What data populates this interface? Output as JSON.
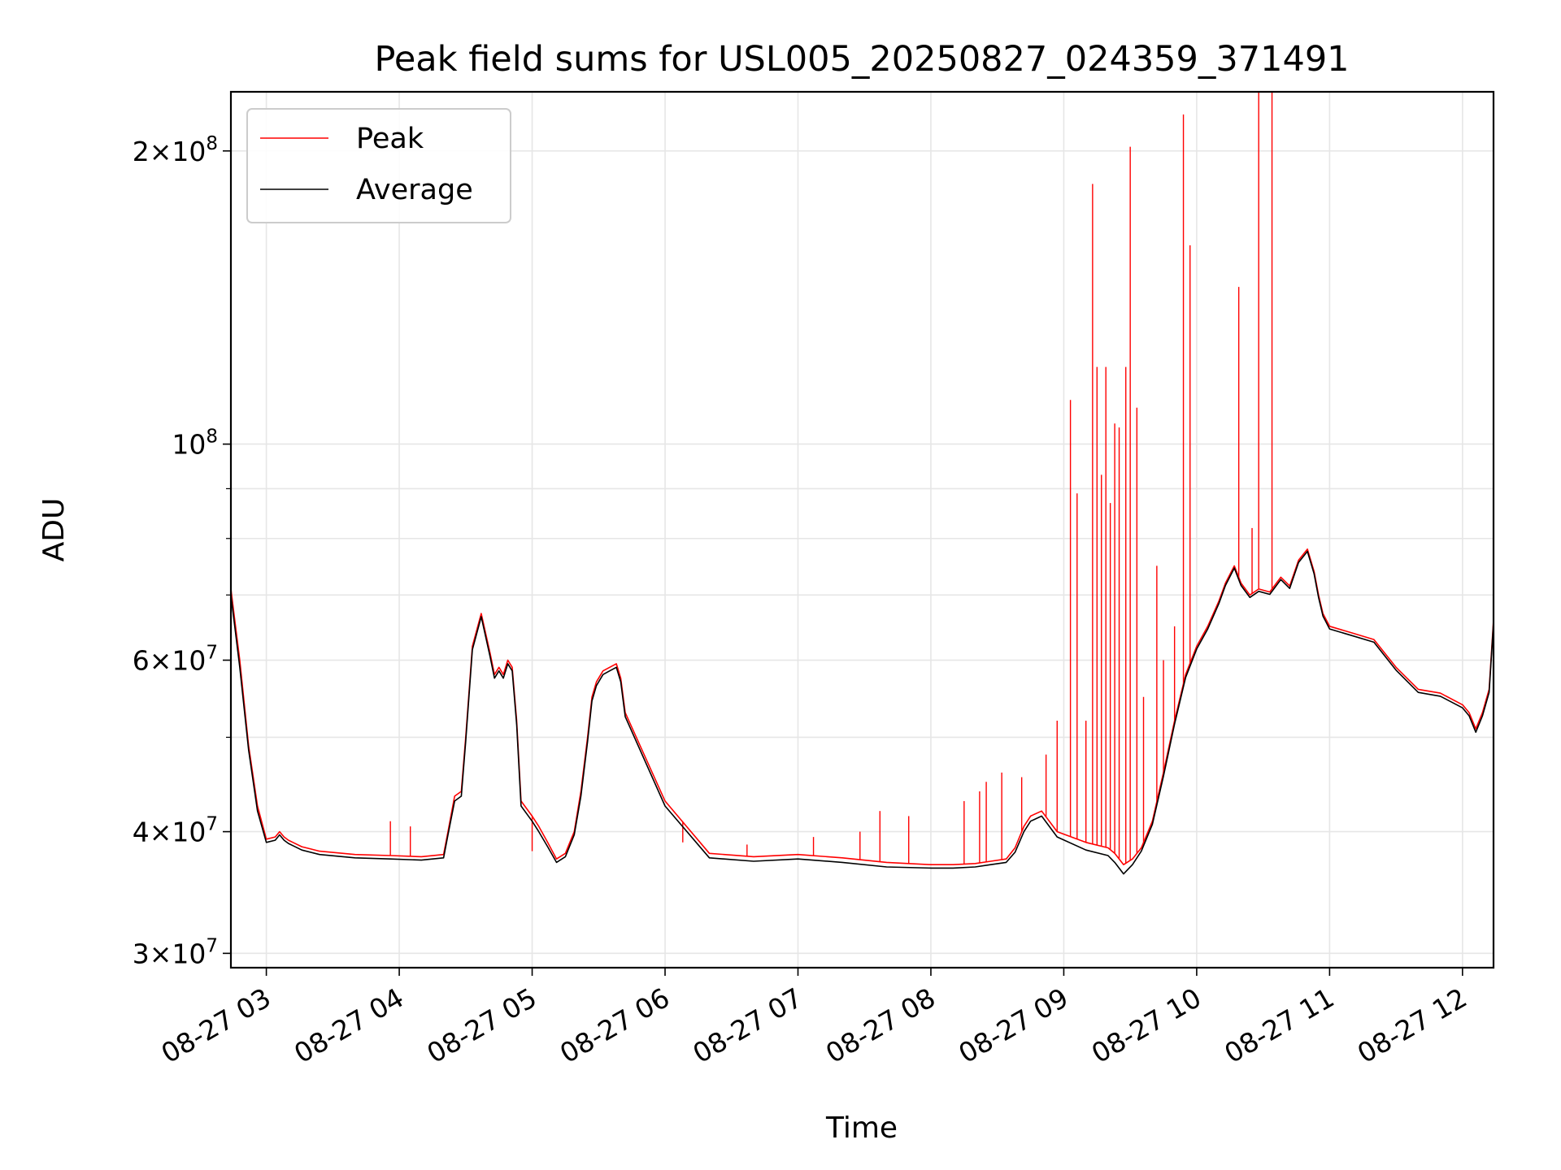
{
  "chart_data": {
    "type": "line",
    "title": "Peak field sums for USL005_20250827_024359_371491",
    "xlabel": "Time",
    "ylabel": "ADU",
    "yscale": "log",
    "xlim": [
      "2025-08-27 02:44",
      "2025-08-27 12:14"
    ],
    "ylim": [
      29000000,
      230000000
    ],
    "grid": true,
    "legend_position": "top-left",
    "x_ticks": [
      "08-27 03",
      "08-27 04",
      "08-27 05",
      "08-27 06",
      "08-27 07",
      "08-27 08",
      "08-27 09",
      "08-27 10",
      "08-27 11",
      "08-27 12"
    ],
    "y_ticks_major": [
      {
        "value": 30000000,
        "mantissa": "3",
        "exp": "7"
      },
      {
        "value": 40000000,
        "mantissa": "4",
        "exp": "7"
      },
      {
        "value": 60000000,
        "mantissa": "6",
        "exp": "7"
      },
      {
        "value": 100000000,
        "mantissa": "",
        "exp": "8"
      },
      {
        "value": 200000000,
        "mantissa": "2",
        "exp": "8"
      }
    ],
    "y_gridlines": [
      30000000,
      40000000,
      50000000,
      60000000,
      70000000,
      80000000,
      90000000,
      100000000,
      200000000
    ],
    "series": [
      {
        "name": "Peak",
        "color": "#ff0000",
        "x": [
          "02:44",
          "02:48",
          "02:52",
          "02:56",
          "03:00",
          "03:04",
          "03:06",
          "03:08",
          "03:10",
          "03:12",
          "03:16",
          "03:24",
          "03:40",
          "03:56",
          "04:10",
          "04:20",
          "04:22",
          "04:25",
          "04:28",
          "04:30",
          "04:33",
          "04:37",
          "04:41",
          "04:43",
          "04:45",
          "04:47",
          "04:49",
          "04:51",
          "04:53",
          "04:55",
          "05:00",
          "05:03",
          "05:07",
          "05:11",
          "05:15",
          "05:19",
          "05:22",
          "05:25",
          "05:27",
          "05:29",
          "05:32",
          "05:35",
          "05:38",
          "05:40",
          "05:42",
          "06:00",
          "06:20",
          "06:40",
          "07:00",
          "07:20",
          "07:40",
          "08:00",
          "08:10",
          "08:20",
          "08:27",
          "08:34",
          "08:38",
          "08:42",
          "08:45",
          "08:50",
          "08:57",
          "09:10",
          "09:20",
          "09:23",
          "09:27",
          "09:31",
          "09:35",
          "09:40",
          "09:45",
          "09:50",
          "09:55",
          "10:00",
          "10:05",
          "10:10",
          "10:13",
          "10:17",
          "10:20",
          "10:24",
          "10:28",
          "10:33",
          "10:38",
          "10:42",
          "10:46",
          "10:50",
          "10:53",
          "10:55",
          "10:57",
          "11:00",
          "11:10",
          "11:20",
          "11:30",
          "11:40",
          "11:50",
          "12:00",
          "12:03",
          "12:06",
          "12:09",
          "12:12",
          "12:14"
        ],
        "y": [
          71000000,
          60000000,
          49000000,
          42500000,
          39300000,
          39500000,
          40000000,
          39500000,
          39200000,
          39000000,
          38600000,
          38200000,
          37900000,
          37800000,
          37700000,
          37900000,
          40000000,
          43500000,
          44000000,
          50000000,
          62000000,
          67000000,
          61000000,
          58000000,
          59000000,
          58000000,
          60000000,
          59000000,
          52000000,
          43000000,
          41500000,
          40500000,
          39000000,
          37500000,
          38000000,
          40000000,
          44000000,
          50000000,
          55000000,
          57000000,
          58500000,
          59000000,
          59500000,
          57500000,
          53000000,
          43000000,
          38000000,
          37700000,
          37900000,
          37600000,
          37200000,
          37000000,
          37000000,
          37100000,
          37300000,
          37500000,
          38500000,
          40500000,
          41500000,
          42000000,
          40000000,
          39000000,
          38500000,
          38000000,
          37000000,
          37500000,
          38500000,
          41000000,
          46000000,
          52000000,
          58000000,
          62000000,
          65000000,
          69000000,
          72000000,
          75000000,
          72000000,
          70000000,
          71000000,
          70500000,
          73000000,
          71500000,
          76000000,
          78000000,
          74000000,
          70000000,
          67000000,
          65000000,
          64000000,
          63000000,
          59000000,
          56000000,
          55500000,
          54000000,
          53000000,
          51000000,
          53000000,
          56000000,
          66000000
        ]
      },
      {
        "name": "Average",
        "color": "#000000",
        "x": [
          "02:44",
          "02:48",
          "02:52",
          "02:56",
          "03:00",
          "03:04",
          "03:06",
          "03:08",
          "03:10",
          "03:12",
          "03:16",
          "03:24",
          "03:40",
          "03:56",
          "04:10",
          "04:20",
          "04:22",
          "04:25",
          "04:28",
          "04:30",
          "04:33",
          "04:37",
          "04:41",
          "04:43",
          "04:45",
          "04:47",
          "04:49",
          "04:51",
          "04:53",
          "04:55",
          "05:00",
          "05:03",
          "05:07",
          "05:11",
          "05:15",
          "05:19",
          "05:22",
          "05:25",
          "05:27",
          "05:29",
          "05:32",
          "05:35",
          "05:38",
          "05:40",
          "05:42",
          "06:00",
          "06:20",
          "06:40",
          "07:00",
          "07:20",
          "07:40",
          "08:00",
          "08:10",
          "08:20",
          "08:27",
          "08:34",
          "08:38",
          "08:42",
          "08:45",
          "08:50",
          "08:57",
          "09:10",
          "09:20",
          "09:23",
          "09:27",
          "09:31",
          "09:35",
          "09:40",
          "09:45",
          "09:50",
          "09:55",
          "10:00",
          "10:05",
          "10:10",
          "10:13",
          "10:17",
          "10:20",
          "10:24",
          "10:28",
          "10:33",
          "10:38",
          "10:42",
          "10:46",
          "10:50",
          "10:53",
          "10:55",
          "10:57",
          "11:00",
          "11:10",
          "11:20",
          "11:30",
          "11:40",
          "11:50",
          "12:00",
          "12:03",
          "12:06",
          "12:09",
          "12:12",
          "12:14"
        ],
        "y": [
          70000000,
          59000000,
          48500000,
          42000000,
          39000000,
          39200000,
          39700000,
          39200000,
          38900000,
          38700000,
          38300000,
          37900000,
          37600000,
          37500000,
          37400000,
          37600000,
          39700000,
          43000000,
          43500000,
          49500000,
          61500000,
          66500000,
          60500000,
          57500000,
          58500000,
          57500000,
          59500000,
          58500000,
          51500000,
          42500000,
          41000000,
          40000000,
          38600000,
          37200000,
          37700000,
          39700000,
          43500000,
          49500000,
          54500000,
          56500000,
          58000000,
          58500000,
          59000000,
          57000000,
          52500000,
          42500000,
          37600000,
          37300000,
          37500000,
          37200000,
          36800000,
          36700000,
          36700000,
          36800000,
          37000000,
          37200000,
          38100000,
          40000000,
          41000000,
          41500000,
          39500000,
          38300000,
          37800000,
          37200000,
          36200000,
          37000000,
          38200000,
          40700000,
          45600000,
          51600000,
          57600000,
          61600000,
          64600000,
          68600000,
          71600000,
          74600000,
          71600000,
          69600000,
          70600000,
          70100000,
          72600000,
          71100000,
          75600000,
          77600000,
          73600000,
          69600000,
          66600000,
          64600000,
          63600000,
          62600000,
          58600000,
          55600000,
          55100000,
          53600000,
          52600000,
          50600000,
          52600000,
          55600000,
          65600000
        ]
      }
    ],
    "peak_spikes": [
      {
        "x": "03:56",
        "y": 41000000
      },
      {
        "x": "04:05",
        "y": 40500000
      },
      {
        "x": "05:00",
        "y": 38200000
      },
      {
        "x": "06:08",
        "y": 39000000
      },
      {
        "x": "06:37",
        "y": 38800000
      },
      {
        "x": "07:07",
        "y": 39500000
      },
      {
        "x": "07:28",
        "y": 40000000
      },
      {
        "x": "07:37",
        "y": 42000000
      },
      {
        "x": "07:50",
        "y": 41500000
      },
      {
        "x": "08:15",
        "y": 43000000
      },
      {
        "x": "08:22",
        "y": 44000000
      },
      {
        "x": "08:25",
        "y": 45000000
      },
      {
        "x": "08:32",
        "y": 46000000
      },
      {
        "x": "08:41",
        "y": 45500000
      },
      {
        "x": "08:52",
        "y": 48000000
      },
      {
        "x": "08:57",
        "y": 52000000
      },
      {
        "x": "09:03",
        "y": 111000000
      },
      {
        "x": "09:06",
        "y": 89000000
      },
      {
        "x": "09:10",
        "y": 52000000
      },
      {
        "x": "09:13",
        "y": 185000000
      },
      {
        "x": "09:15",
        "y": 120000000
      },
      {
        "x": "09:17",
        "y": 93000000
      },
      {
        "x": "09:19",
        "y": 120000000
      },
      {
        "x": "09:21",
        "y": 87000000
      },
      {
        "x": "09:23",
        "y": 105000000
      },
      {
        "x": "09:25",
        "y": 104000000
      },
      {
        "x": "09:28",
        "y": 120000000
      },
      {
        "x": "09:30",
        "y": 202000000
      },
      {
        "x": "09:33",
        "y": 109000000
      },
      {
        "x": "09:36",
        "y": 55000000
      },
      {
        "x": "09:42",
        "y": 75000000
      },
      {
        "x": "09:45",
        "y": 60000000
      },
      {
        "x": "09:50",
        "y": 65000000
      },
      {
        "x": "09:54",
        "y": 218000000
      },
      {
        "x": "09:57",
        "y": 160000000
      },
      {
        "x": "10:19",
        "y": 145000000
      },
      {
        "x": "10:25",
        "y": 82000000
      },
      {
        "x": "10:28",
        "y": 232000000
      },
      {
        "x": "10:34",
        "y": 232000000
      }
    ]
  }
}
